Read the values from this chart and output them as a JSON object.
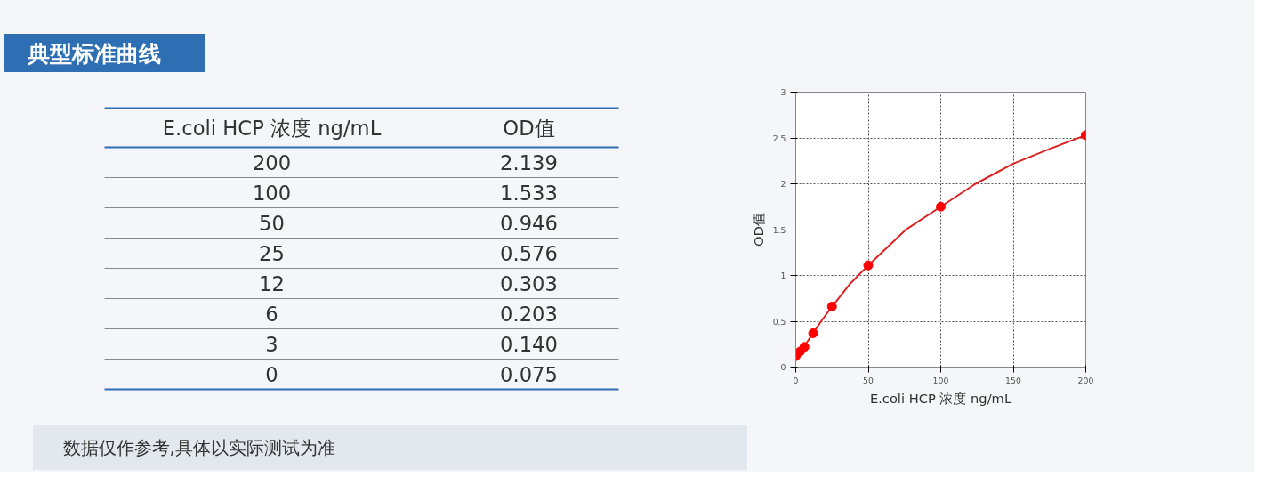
{
  "chart_data": [
    {
      "type": "other",
      "title": "典型标准曲线",
      "annotations": [
        "E.coli HCP 浓度 ng/mL",
        "OD值",
        "200",
        "2.139",
        "100",
        "1.533",
        "50",
        "0.946",
        "25",
        "0.576",
        "12",
        "0.303",
        "6",
        "0.203",
        "3",
        "0.140",
        "0",
        "0.075",
        "数据仅作参考,具体以实际测试为准"
      ]
    },
    {
      "type": "scatter",
      "xlabel": "E.coli HCP 浓度 ng/mL",
      "ylabel": "OD值",
      "xlim": [
        0,
        200
      ],
      "ylim": [
        0,
        3
      ],
      "xticks": [
        0,
        50,
        100,
        150,
        200
      ],
      "yticks": [
        0,
        0.5,
        1,
        1.5,
        2,
        2.5,
        3
      ],
      "grid": true,
      "line_style": "solid",
      "series": [
        {
          "type": "line",
          "color": "#e02020",
          "x": [
            0,
            3,
            6,
            12,
            17.5,
            25,
            37,
            50,
            76,
            100,
            124,
            150,
            175,
            200
          ],
          "values": [
            0.12,
            0.17,
            0.23,
            0.37,
            0.5,
            0.66,
            0.9,
            1.11,
            1.5,
            1.75,
            2.0,
            2.22,
            2.38,
            2.53
          ]
        },
        {
          "type": "scatter",
          "marker": "circle",
          "color": "#ff0000",
          "x": [
            0,
            3,
            6,
            12,
            25,
            50,
            100,
            200
          ],
          "values": [
            0.12,
            0.17,
            0.22,
            0.37,
            0.66,
            1.11,
            1.75,
            2.53
          ]
        }
      ]
    }
  ]
}
